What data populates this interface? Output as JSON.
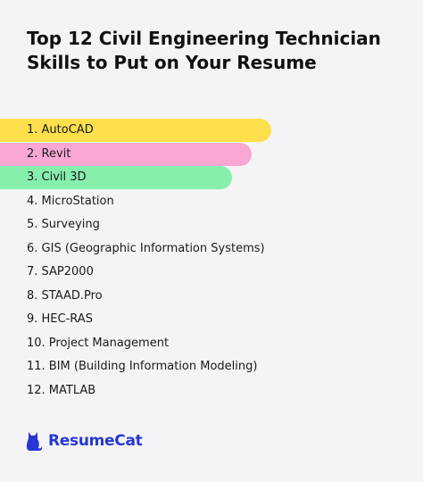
{
  "header": {
    "title": "Top 12 Civil Engineering Technician Skills to Put on Your Resume"
  },
  "list": {
    "items": [
      "1. AutoCAD",
      "2. Revit",
      "3. Civil 3D",
      "4. MicroStation",
      "5. Surveying",
      "6. GIS (Geographic Information Systems)",
      "7. SAP2000",
      "8. STAAD.Pro",
      "9. HEC-RAS",
      "10. Project Management",
      "11. BIM (Building Information Modeling)",
      "12. MATLAB"
    ]
  },
  "footer": {
    "brand": "ResumeCat"
  }
}
